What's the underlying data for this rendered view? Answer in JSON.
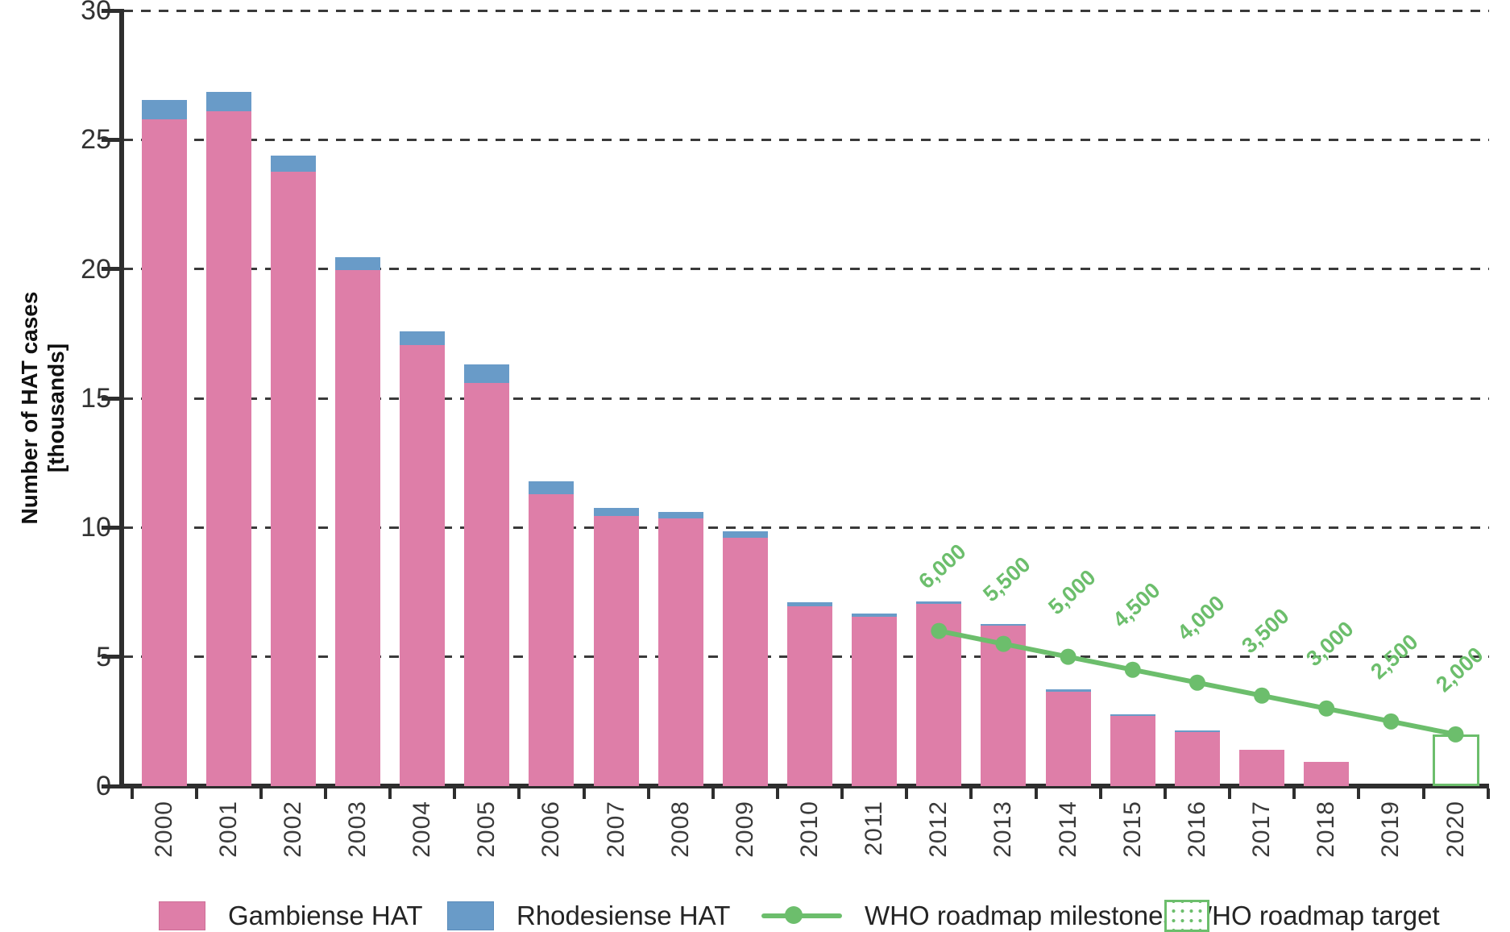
{
  "chart_data": {
    "type": "bar",
    "stacked": true,
    "title": "",
    "ylabel_lines": [
      "Number of HAT cases",
      "[thousands]"
    ],
    "xlabel": "",
    "ylim": [
      0,
      30
    ],
    "yticks": [
      0,
      5,
      10,
      15,
      20,
      25,
      30
    ],
    "grid": "horizontal-dashed",
    "legend_position": "bottom",
    "categories": [
      "2000",
      "2001",
      "2002",
      "2003",
      "2004",
      "2005",
      "2006",
      "2007",
      "2008",
      "2009",
      "2010",
      "2011",
      "2012",
      "2013",
      "2014",
      "2015",
      "2016",
      "2017",
      "2018",
      "2019",
      "2020"
    ],
    "series": [
      {
        "name": "Gambiense HAT",
        "color": "#DE7EA8",
        "values": [
          25.8,
          26.1,
          23.75,
          19.95,
          17.05,
          15.6,
          11.3,
          10.45,
          10.35,
          9.6,
          6.95,
          6.55,
          7.05,
          6.2,
          3.65,
          2.7,
          2.1,
          1.4,
          0.95,
          0,
          0
        ]
      },
      {
        "name": "Rhodesiense HAT",
        "color": "#699BC8",
        "values": [
          0.75,
          0.75,
          0.65,
          0.5,
          0.55,
          0.7,
          0.5,
          0.3,
          0.25,
          0.25,
          0.15,
          0.12,
          0.1,
          0.06,
          0.1,
          0.06,
          0.06,
          0,
          0,
          0,
          0
        ]
      }
    ],
    "milestones": {
      "name": "WHO roadmap milestones",
      "color": "#6CBE6C",
      "points": [
        {
          "year": "2012",
          "value": 6.0,
          "label": "6,000"
        },
        {
          "year": "2013",
          "value": 5.5,
          "label": "5,500"
        },
        {
          "year": "2014",
          "value": 5.0,
          "label": "5,000"
        },
        {
          "year": "2015",
          "value": 4.5,
          "label": "4,500"
        },
        {
          "year": "2016",
          "value": 4.0,
          "label": "4,000"
        },
        {
          "year": "2017",
          "value": 3.5,
          "label": "3,500"
        },
        {
          "year": "2018",
          "value": 3.0,
          "label": "3,000"
        },
        {
          "year": "2019",
          "value": 2.5,
          "label": "2,500"
        },
        {
          "year": "2020",
          "value": 2.0,
          "label": "2,000"
        }
      ]
    },
    "target": {
      "name": "WHO roadmap target",
      "year": "2020",
      "value": 2.0,
      "color": "#6CBE6C"
    }
  },
  "legend": {
    "items": [
      {
        "label": "Gambiense HAT",
        "swatch": "pink-fill"
      },
      {
        "label": "Rhodesiense HAT",
        "swatch": "blue-fill"
      },
      {
        "label": "WHO roadmap milestones",
        "swatch": "green-line-dot"
      },
      {
        "label": "WHO roadmap target",
        "swatch": "green-dotted-box"
      }
    ]
  },
  "colors": {
    "gambiense": "#DE7EA8",
    "rhodesiense": "#699BC8",
    "green": "#6CBE6C",
    "axis": "#2E2E2E",
    "text": "#3A3A3A"
  }
}
